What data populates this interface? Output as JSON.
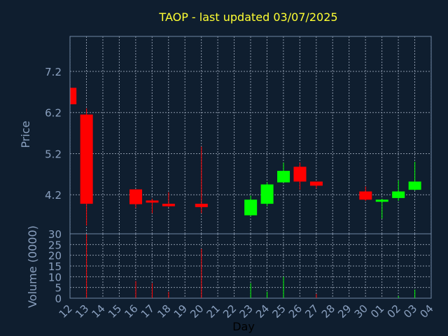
{
  "chart_data": {
    "type": "candlestick",
    "title": "TAOP - last updated 03/07/2025",
    "xlabel": "Day",
    "price_panel": {
      "ylabel": "Price",
      "ylim": [
        3.25,
        8.05
      ],
      "yticks": [
        4.2,
        5.2,
        6.2,
        7.2
      ],
      "grid": true
    },
    "volume_panel": {
      "ylabel": "Volume (0000)",
      "ylim": [
        0,
        30
      ],
      "yticks": [
        0,
        5,
        10,
        15,
        20,
        25,
        30
      ],
      "grid": true
    },
    "x_ticks": [
      "12",
      "13",
      "14",
      "15",
      "16",
      "17",
      "18",
      "19",
      "20",
      "21",
      "22",
      "23",
      "24",
      "25",
      "26",
      "27",
      "28",
      "29",
      "30",
      "01",
      "02",
      "03",
      "04"
    ],
    "up_color": "#00ff00",
    "down_color": "#ff0000",
    "candles": [
      {
        "day": "12",
        "open": 6.8,
        "high": 6.8,
        "low": 6.4,
        "close": 6.4,
        "volume": 0
      },
      {
        "day": "13",
        "open": 6.15,
        "high": 6.3,
        "low": 3.45,
        "close": 3.98,
        "volume": 30
      },
      {
        "day": "16",
        "open": 4.33,
        "high": 4.33,
        "low": 3.88,
        "close": 3.97,
        "volume": 8
      },
      {
        "day": "17",
        "open": 4.06,
        "high": 4.1,
        "low": 3.75,
        "close": 4.01,
        "volume": 7
      },
      {
        "day": "18",
        "open": 3.98,
        "high": 4.26,
        "low": 3.9,
        "close": 3.92,
        "volume": 3
      },
      {
        "day": "20",
        "open": 3.98,
        "high": 5.37,
        "low": 3.75,
        "close": 3.9,
        "volume": 23
      },
      {
        "day": "23",
        "open": 3.7,
        "high": 4.18,
        "low": 3.68,
        "close": 4.08,
        "volume": 7
      },
      {
        "day": "24",
        "open": 3.98,
        "high": 4.5,
        "low": 3.92,
        "close": 4.45,
        "volume": 3
      },
      {
        "day": "25",
        "open": 4.5,
        "high": 4.98,
        "low": 4.5,
        "close": 4.78,
        "volume": 10
      },
      {
        "day": "26",
        "open": 4.88,
        "high": 4.98,
        "low": 4.32,
        "close": 4.52,
        "volume": 0
      },
      {
        "day": "27",
        "open": 4.52,
        "high": 4.52,
        "low": 4.35,
        "close": 4.42,
        "volume": 2
      },
      {
        "day": "30",
        "open": 4.28,
        "high": 4.4,
        "low": 4.05,
        "close": 4.08,
        "volume": 0
      },
      {
        "day": "01",
        "open": 4.05,
        "high": 4.1,
        "low": 3.62,
        "close": 4.08,
        "volume": 0
      },
      {
        "day": "02",
        "open": 4.12,
        "high": 4.55,
        "low": 4.05,
        "close": 4.28,
        "volume": 1
      },
      {
        "day": "03",
        "open": 4.32,
        "high": 5.0,
        "low": 4.3,
        "close": 4.52,
        "volume": 4
      }
    ]
  }
}
